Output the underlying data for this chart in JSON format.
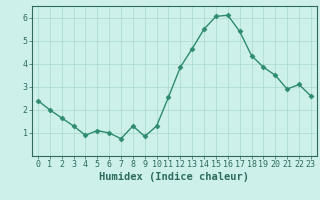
{
  "xlabel": "Humidex (Indice chaleur)",
  "x": [
    0,
    1,
    2,
    3,
    4,
    5,
    6,
    7,
    8,
    9,
    10,
    11,
    12,
    13,
    14,
    15,
    16,
    17,
    18,
    19,
    20,
    21,
    22,
    23
  ],
  "y": [
    2.4,
    2.0,
    1.65,
    1.3,
    0.9,
    1.1,
    1.0,
    0.75,
    1.3,
    0.85,
    1.3,
    2.55,
    3.85,
    4.65,
    5.5,
    6.05,
    6.1,
    5.4,
    4.35,
    3.85,
    3.5,
    2.9,
    3.1,
    2.6
  ],
  "line_color": "#2e8b6e",
  "marker": "D",
  "marker_size": 2.5,
  "line_width": 1.0,
  "bg_color": "#cef0ea",
  "grid_color": "#a8d8d0",
  "axis_color": "#2e6b5e",
  "tick_color": "#2e6b5e",
  "xlim": [
    -0.5,
    23.5
  ],
  "ylim": [
    0,
    6.5
  ],
  "yticks": [
    1,
    2,
    3,
    4,
    5,
    6
  ],
  "xticks": [
    0,
    1,
    2,
    3,
    4,
    5,
    6,
    7,
    8,
    9,
    10,
    11,
    12,
    13,
    14,
    15,
    16,
    17,
    18,
    19,
    20,
    21,
    22,
    23
  ],
  "xlabel_fontsize": 7.5,
  "tick_fontsize": 6.0
}
